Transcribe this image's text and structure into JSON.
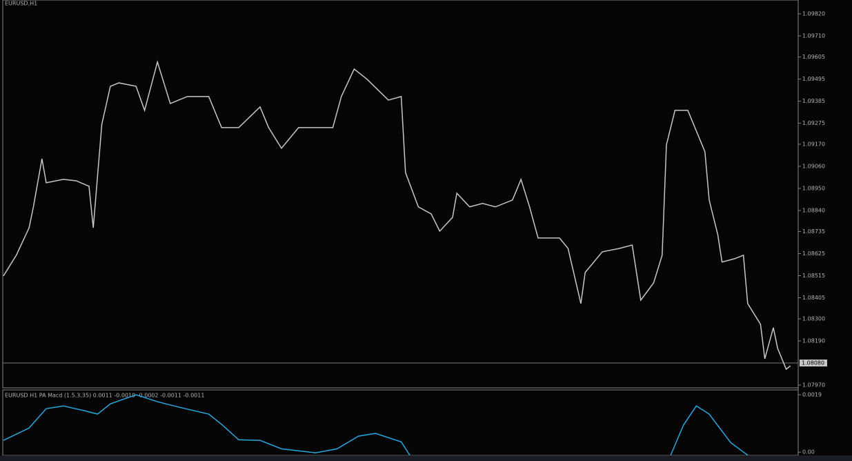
{
  "chart_data": [
    {
      "type": "line",
      "title": "EURUSD,H1",
      "color": "#c8c8c8",
      "x": [
        0,
        3,
        6,
        7,
        9,
        10,
        14,
        17,
        20,
        21,
        23,
        25,
        27,
        31,
        33,
        36,
        39,
        43,
        48,
        51,
        55,
        60,
        62,
        65,
        69,
        73,
        77,
        79,
        82,
        85,
        90,
        93,
        94,
        97,
        100,
        102,
        105,
        106,
        109,
        112,
        115,
        119,
        121,
        123,
        125,
        130,
        132,
        135,
        136,
        140,
        144,
        147,
        149,
        152,
        154,
        155,
        157,
        160,
        162,
        164,
        165,
        167,
        168,
        171,
        173,
        174,
        177,
        178,
        180,
        181,
        183,
        184
      ],
      "values": [
        1.08514,
        1.08617,
        1.08754,
        1.08858,
        1.09098,
        1.08978,
        1.08995,
        1.08988,
        1.08961,
        1.08754,
        1.0927,
        1.09459,
        1.09476,
        1.09459,
        1.09339,
        1.0958,
        1.09373,
        1.09408,
        1.09408,
        1.09253,
        1.09253,
        1.09356,
        1.09253,
        1.0915,
        1.09253,
        1.09253,
        1.09253,
        1.09408,
        1.09545,
        1.09494,
        1.0939,
        1.09408,
        1.09029,
        1.08858,
        1.08823,
        1.08737,
        1.08806,
        1.08926,
        1.08858,
        1.08875,
        1.08858,
        1.08892,
        1.08995,
        1.08858,
        1.08703,
        1.08703,
        1.08651,
        1.08376,
        1.08531,
        1.08634,
        1.08651,
        1.08668,
        1.08393,
        1.08479,
        1.08617,
        1.09167,
        1.09339,
        1.09339,
        1.09236,
        1.09133,
        1.08892,
        1.0872,
        1.08583,
        1.086,
        1.08617,
        1.08376,
        1.08273,
        1.08101,
        1.08256,
        1.08153,
        1.08049,
        1.08066
      ],
      "xlim": [
        0,
        185
      ],
      "ylim": [
        1.07963,
        1.09889
      ],
      "yticks": [
        {
          "value": 1.0982,
          "label": "1.09820"
        },
        {
          "value": 1.0971,
          "label": "1.09710"
        },
        {
          "value": 1.09605,
          "label": "1.09605"
        },
        {
          "value": 1.09495,
          "label": "1.09495"
        },
        {
          "value": 1.09385,
          "label": "1.09385"
        },
        {
          "value": 1.09275,
          "label": "1.09275"
        },
        {
          "value": 1.0917,
          "label": "1.09170"
        },
        {
          "value": 1.0906,
          "label": "1.09060"
        },
        {
          "value": 1.0895,
          "label": "1.08950"
        },
        {
          "value": 1.0884,
          "label": "1.08840"
        },
        {
          "value": 1.08735,
          "label": "1.08735"
        },
        {
          "value": 1.08625,
          "label": "1.08625"
        },
        {
          "value": 1.08515,
          "label": "1.08515"
        },
        {
          "value": 1.08405,
          "label": "1.08405"
        },
        {
          "value": 1.083,
          "label": "1.08300"
        },
        {
          "value": 1.0819,
          "label": "1.08190"
        },
        {
          "value": 1.0797,
          "label": "1.07970"
        }
      ],
      "current_price": {
        "value": 1.0808,
        "label": "1.08080"
      }
    },
    {
      "type": "line",
      "title": "EURUSD H1 PA Macd (1.5,3,35) 0.0011 -0.0019 -0.0002 -0.0011 -0.0011",
      "color": "#29a9e0",
      "x": [
        0,
        6,
        10,
        14,
        19,
        22,
        25,
        31,
        36,
        41,
        48,
        51,
        55,
        60,
        65,
        73,
        78,
        83,
        87,
        93,
        95,
        120,
        156,
        159,
        162,
        165,
        170,
        174
      ],
      "values": [
        0.00039,
        0.0008,
        0.00144,
        0.00153,
        0.00137,
        0.00126,
        0.0016,
        0.0019,
        0.00167,
        0.00149,
        0.00126,
        0.00092,
        0.00041,
        0.00039,
        0.00011,
        -2e-05,
        0.00011,
        0.00053,
        0.00062,
        0.00034,
        -0.0001,
        null,
        -0.0001,
        0.0009,
        0.00153,
        0.00126,
        0.00032,
        -0.0001
      ],
      "xlim": [
        0,
        185
      ],
      "ylim": [
        -0.00011,
        0.00206
      ],
      "yticks": [
        {
          "value": 0.0019,
          "label": "0.0019"
        },
        {
          "value": 0,
          "label": "0.00"
        }
      ]
    }
  ]
}
